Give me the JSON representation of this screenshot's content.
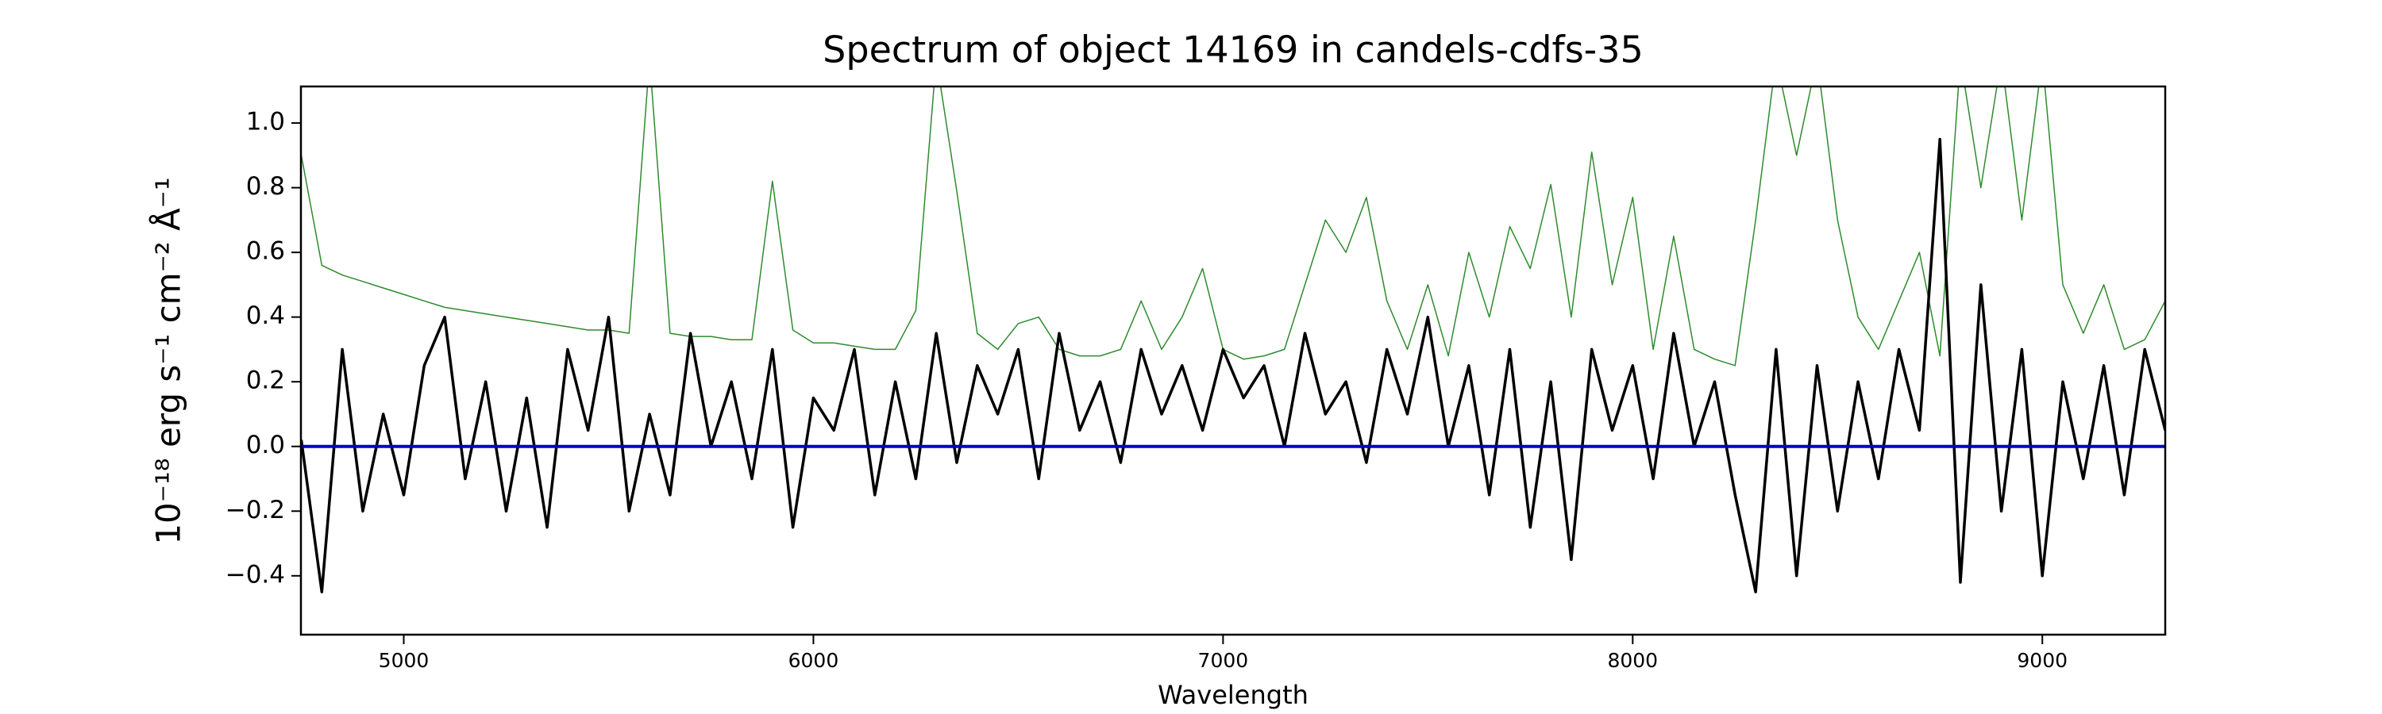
{
  "chart_data": {
    "type": "line",
    "title": "Spectrum of object 14169 in candels-cdfs-35",
    "xlabel": "Wavelength",
    "ylabel": "10⁻¹⁸ erg s⁻¹ cm⁻² Å⁻¹",
    "x": [
      4750,
      4800,
      4850,
      4900,
      4950,
      5000,
      5050,
      5100,
      5150,
      5200,
      5250,
      5300,
      5350,
      5400,
      5450,
      5500,
      5550,
      5600,
      5650,
      5700,
      5750,
      5800,
      5850,
      5900,
      5950,
      6000,
      6050,
      6100,
      6150,
      6200,
      6250,
      6300,
      6350,
      6400,
      6450,
      6500,
      6550,
      6600,
      6650,
      6700,
      6750,
      6800,
      6850,
      6900,
      6950,
      7000,
      7050,
      7100,
      7150,
      7200,
      7250,
      7300,
      7350,
      7400,
      7450,
      7500,
      7550,
      7600,
      7650,
      7700,
      7750,
      7800,
      7850,
      7900,
      7950,
      8000,
      8050,
      8100,
      8150,
      8200,
      8250,
      8300,
      8350,
      8400,
      8450,
      8500,
      8550,
      8600,
      8650,
      8700,
      8750,
      8800,
      8850,
      8900,
      8950,
      9000,
      9050,
      9100,
      9150,
      9200,
      9250,
      9300
    ],
    "series": [
      {
        "color": "#2e8b2e",
        "values": [
          0.9,
          0.56,
          0.53,
          0.51,
          0.49,
          0.47,
          0.45,
          0.43,
          0.42,
          0.41,
          0.4,
          0.39,
          0.38,
          0.37,
          0.36,
          0.36,
          0.35,
          1.2,
          0.35,
          0.34,
          0.34,
          0.33,
          0.33,
          0.82,
          0.36,
          0.32,
          0.32,
          0.31,
          0.3,
          0.3,
          0.42,
          1.2,
          0.79,
          0.35,
          0.3,
          0.38,
          0.4,
          0.3,
          0.28,
          0.28,
          0.3,
          0.45,
          0.3,
          0.4,
          0.55,
          0.3,
          0.27,
          0.28,
          0.3,
          0.5,
          0.7,
          0.6,
          0.77,
          0.45,
          0.3,
          0.5,
          0.28,
          0.6,
          0.4,
          0.68,
          0.55,
          0.81,
          0.4,
          0.91,
          0.5,
          0.77,
          0.3,
          0.65,
          0.3,
          0.27,
          0.25,
          0.7,
          1.2,
          0.9,
          1.2,
          0.7,
          0.4,
          0.3,
          0.45,
          0.6,
          0.28,
          1.2,
          0.8,
          1.2,
          0.7,
          1.2,
          0.5,
          0.35,
          0.5,
          0.3,
          0.33,
          0.45
        ]
      },
      {
        "color": "#000000",
        "values": [
          0.02,
          -0.45,
          0.3,
          -0.2,
          0.1,
          -0.15,
          0.25,
          0.4,
          -0.1,
          0.2,
          -0.2,
          0.15,
          -0.25,
          0.3,
          0.05,
          0.4,
          -0.2,
          0.1,
          -0.15,
          0.35,
          0.0,
          0.2,
          -0.1,
          0.3,
          -0.25,
          0.15,
          0.05,
          0.3,
          -0.15,
          0.2,
          -0.1,
          0.35,
          -0.05,
          0.25,
          0.1,
          0.3,
          -0.1,
          0.35,
          0.05,
          0.2,
          -0.05,
          0.3,
          0.1,
          0.25,
          0.05,
          0.3,
          0.15,
          0.25,
          0.0,
          0.35,
          0.1,
          0.2,
          -0.05,
          0.3,
          0.1,
          0.4,
          0.0,
          0.25,
          -0.15,
          0.3,
          -0.25,
          0.2,
          -0.35,
          0.3,
          0.05,
          0.25,
          -0.1,
          0.35,
          0.0,
          0.2,
          -0.15,
          -0.45,
          0.3,
          -0.4,
          0.25,
          -0.2,
          0.2,
          -0.1,
          0.3,
          0.05,
          0.95,
          -0.42,
          0.5,
          -0.2,
          0.3,
          -0.4,
          0.2,
          -0.1,
          0.25,
          -0.15,
          0.3,
          0.05
        ]
      },
      {
        "color": "#0000cc",
        "values": [
          0,
          0,
          0,
          0,
          0,
          0,
          0,
          0,
          0,
          0,
          0,
          0,
          0,
          0,
          0,
          0,
          0,
          0,
          0,
          0,
          0,
          0,
          0,
          0,
          0,
          0,
          0,
          0,
          0,
          0,
          0,
          0,
          0,
          0,
          0,
          0,
          0,
          0,
          0,
          0,
          0,
          0,
          0,
          0,
          0,
          0,
          0,
          0,
          0,
          0,
          0,
          0,
          0,
          0,
          0,
          0,
          0,
          0,
          0,
          0,
          0,
          0,
          0,
          0,
          0,
          0,
          0,
          0,
          0,
          0,
          0,
          0,
          0,
          0,
          0,
          0,
          0,
          0,
          0,
          0,
          0,
          0,
          0,
          0,
          0,
          0,
          0,
          0,
          0,
          0,
          0,
          0
        ]
      }
    ],
    "xlim": [
      4749,
      9300
    ],
    "xticks": [
      5000,
      6000,
      7000,
      8000,
      9000
    ],
    "ylim": [
      -0.582,
      1.113
    ],
    "yticks": [
      {
        "value": -0.4,
        "label": "−0.4"
      },
      {
        "value": -0.2,
        "label": "−0.2"
      },
      {
        "value": 0,
        "label": "0.0"
      },
      0.2,
      0.4,
      0.6,
      0.8,
      {
        "value": 1,
        "label": "1.0"
      }
    ],
    "grid": false
  }
}
